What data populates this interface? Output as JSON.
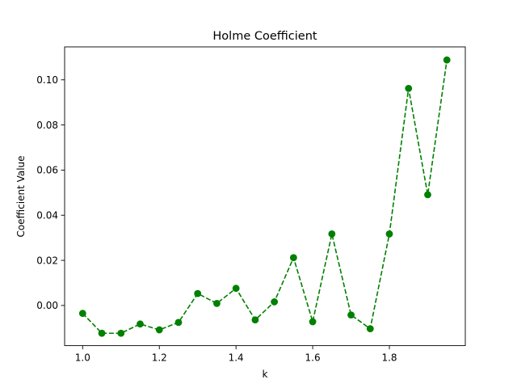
{
  "chart_data": {
    "type": "line",
    "title": "Holme Coefficient",
    "xlabel": "k",
    "ylabel": "Coefficient Value",
    "xlim": [
      0.953,
      1.998
    ],
    "ylim": [
      -0.0178,
      0.1146
    ],
    "xticks": [
      1.0,
      1.2,
      1.4,
      1.6,
      1.8
    ],
    "xtick_labels": [
      "1.0",
      "1.2",
      "1.4",
      "1.6",
      "1.8"
    ],
    "yticks": [
      0.0,
      0.02,
      0.04,
      0.06,
      0.08,
      0.1
    ],
    "ytick_labels": [
      "0.00",
      "0.02",
      "0.04",
      "0.06",
      "0.08",
      "0.10"
    ],
    "grid": false,
    "series": [
      {
        "color": "#008000",
        "line_style": "dashed",
        "marker": "circle",
        "x": [
          1.0,
          1.05,
          1.1,
          1.15,
          1.2,
          1.25,
          1.3,
          1.35,
          1.4,
          1.45,
          1.5,
          1.55,
          1.6,
          1.65,
          1.7,
          1.75,
          1.8,
          1.85,
          1.9,
          1.95
        ],
        "y": [
          -0.0035,
          -0.0123,
          -0.0123,
          -0.0082,
          -0.0108,
          -0.0075,
          0.0053,
          0.0009,
          0.0076,
          -0.0064,
          0.0016,
          0.0212,
          -0.0072,
          0.0317,
          -0.0042,
          -0.0103,
          0.0317,
          0.0962,
          0.0491,
          0.1088
        ]
      }
    ]
  }
}
